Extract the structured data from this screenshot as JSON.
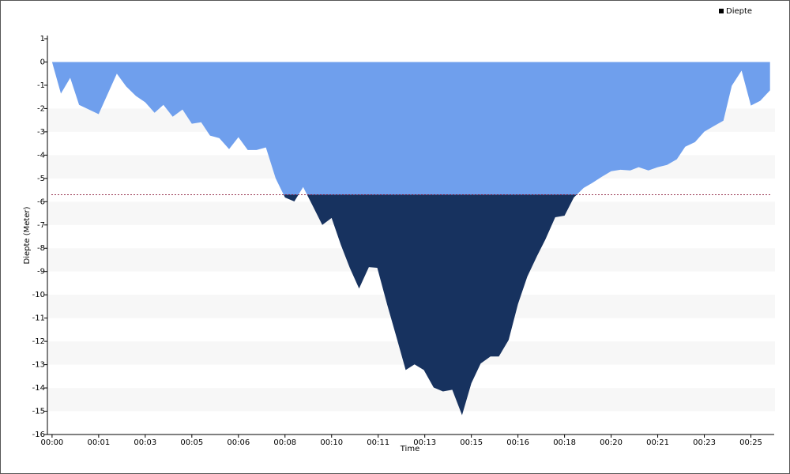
{
  "chart_data": {
    "type": "area",
    "series": [
      {
        "name": "Diepte",
        "color": "#6f9fed",
        "threshold_color": "#17325f",
        "x": [
          0,
          19,
          39,
          58,
          100,
          139,
          159,
          180,
          200,
          220,
          239,
          259,
          280,
          300,
          320,
          339,
          359,
          380,
          400,
          420,
          439,
          459,
          480,
          500,
          520,
          539,
          559,
          580,
          600,
          620,
          639,
          659,
          680,
          698,
          719,
          739,
          759,
          778,
          798,
          819,
          839,
          859,
          880,
          900,
          920,
          941,
          959,
          980,
          1000,
          1020,
          1041,
          1059,
          1080,
          1100,
          1120,
          1141,
          1159,
          1180,
          1200,
          1220,
          1241,
          1259,
          1280,
          1300,
          1320,
          1341,
          1359,
          1380,
          1400,
          1420,
          1441,
          1459,
          1480,
          1500,
          1520,
          1541
        ],
        "values": [
          0,
          -1.36,
          -0.68,
          -1.84,
          -2.24,
          -0.5,
          -1.05,
          -1.46,
          -1.73,
          -2.18,
          -1.84,
          -2.35,
          -2.04,
          -2.65,
          -2.59,
          -3.16,
          -3.27,
          -3.74,
          -3.23,
          -3.78,
          -3.78,
          -3.67,
          -5.0,
          -5.82,
          -5.99,
          -5.37,
          -6.16,
          -7.0,
          -6.7,
          -7.86,
          -8.84,
          -9.73,
          -8.81,
          -8.84,
          -10.4,
          -11.8,
          -13.23,
          -12.99,
          -13.23,
          -13.98,
          -14.15,
          -14.08,
          -15.17,
          -13.8,
          -12.95,
          -12.65,
          -12.65,
          -11.94,
          -10.4,
          -9.22,
          -8.33,
          -7.62,
          -6.67,
          -6.6,
          -5.82,
          -5.41,
          -5.2,
          -4.93,
          -4.69,
          -4.63,
          -4.66,
          -4.52,
          -4.66,
          -4.52,
          -4.42,
          -4.18,
          -3.64,
          -3.44,
          -2.99,
          -2.76,
          -2.52,
          -1.02,
          -0.37,
          -1.87,
          -1.67,
          -1.22
        ]
      }
    ],
    "threshold": -5.7,
    "x_label": "Time",
    "y_label": "Diepte (Meter)",
    "xlim": [
      -10,
      1550
    ],
    "xticks": [
      {
        "value": 0,
        "label": "00:00"
      },
      {
        "value": 100,
        "label": "00:01"
      },
      {
        "value": 200,
        "label": "00:03"
      },
      {
        "value": 300,
        "label": "00:05"
      },
      {
        "value": 400,
        "label": "00:06"
      },
      {
        "value": 500,
        "label": "00:08"
      },
      {
        "value": 600,
        "label": "00:10"
      },
      {
        "value": 700,
        "label": "00:11"
      },
      {
        "value": 800,
        "label": "00:13"
      },
      {
        "value": 900,
        "label": "00:15"
      },
      {
        "value": 1000,
        "label": "00:16"
      },
      {
        "value": 1100,
        "label": "00:18"
      },
      {
        "value": 1200,
        "label": "00:20"
      },
      {
        "value": 1300,
        "label": "00:21"
      },
      {
        "value": 1400,
        "label": "00:23"
      },
      {
        "value": 1500,
        "label": "00:25"
      }
    ],
    "ylim": [
      -16,
      1
    ],
    "yticks": [
      1,
      0,
      -1,
      -2,
      -3,
      -4,
      -5,
      -6,
      -7,
      -8,
      -9,
      -10,
      -11,
      -12,
      -13,
      -14,
      -15,
      -16
    ],
    "legend": "top-right"
  }
}
